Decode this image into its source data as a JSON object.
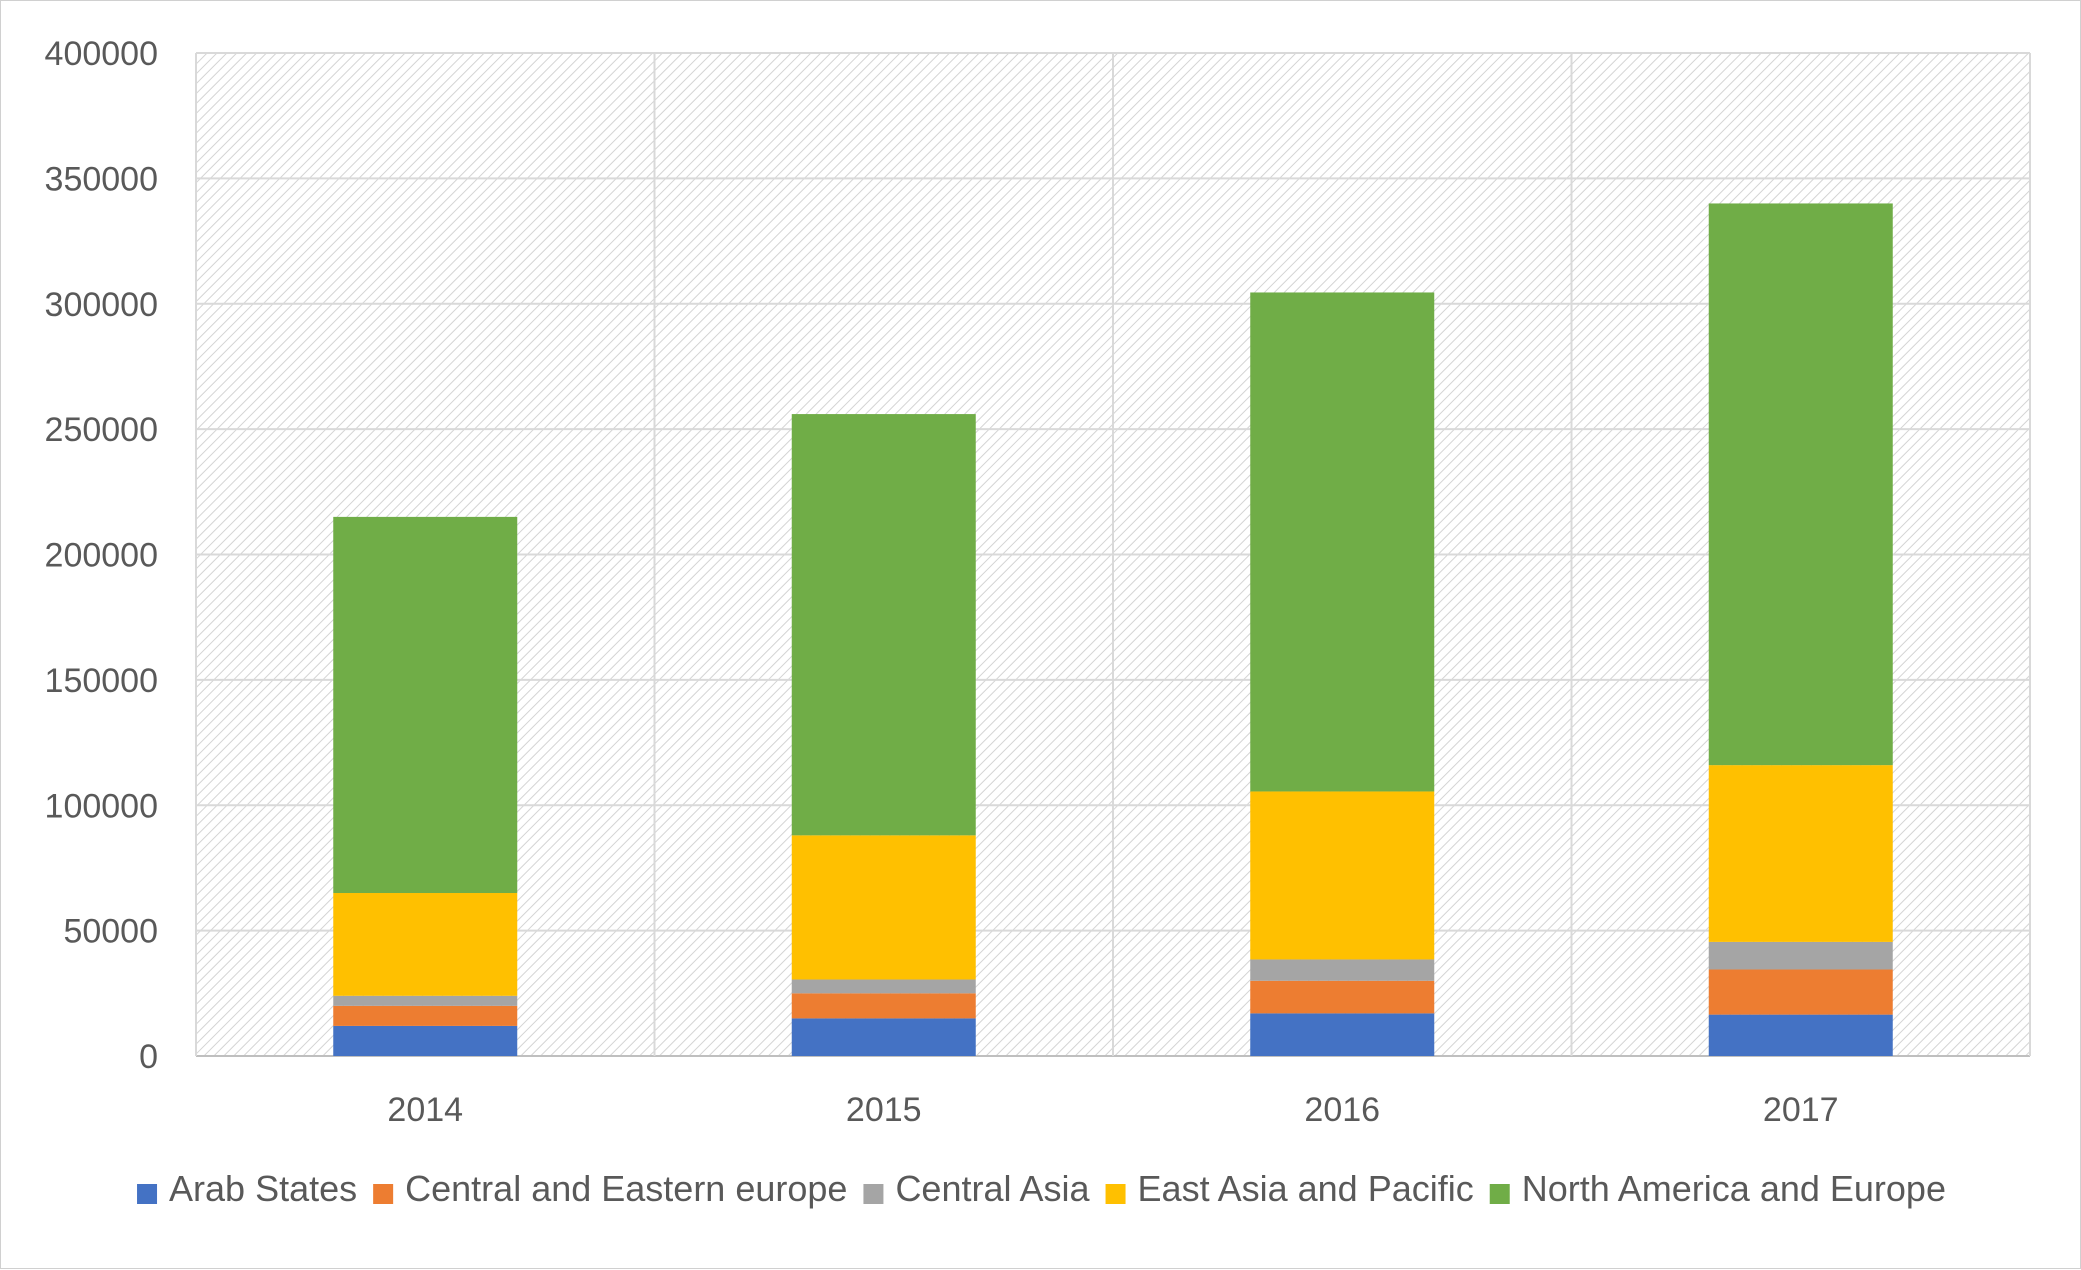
{
  "chart_data": {
    "type": "bar",
    "stacked": true,
    "categories": [
      "2014",
      "2015",
      "2016",
      "2017"
    ],
    "series": [
      {
        "name": "Arab States",
        "color": "#4472C4",
        "values": [
          12000,
          15000,
          17000,
          16500
        ]
      },
      {
        "name": "Central and Eastern europe",
        "color": "#ED7D31",
        "values": [
          8000,
          10000,
          13000,
          18000
        ]
      },
      {
        "name": "Central Asia",
        "color": "#A5A5A5",
        "values": [
          4000,
          5500,
          8500,
          11000
        ]
      },
      {
        "name": "East Asia and Pacific",
        "color": "#FFC000",
        "values": [
          41000,
          57500,
          67000,
          70500
        ]
      },
      {
        "name": "North America and Europe",
        "color": "#70AD47",
        "values": [
          150000,
          168000,
          199000,
          224000
        ]
      }
    ],
    "ylim": [
      0,
      400000
    ],
    "yticks": [
      0,
      50000,
      100000,
      150000,
      200000,
      250000,
      300000,
      350000,
      400000
    ],
    "title": "",
    "xlabel": "",
    "ylabel": "",
    "grid": true,
    "legend_position": "bottom"
  }
}
